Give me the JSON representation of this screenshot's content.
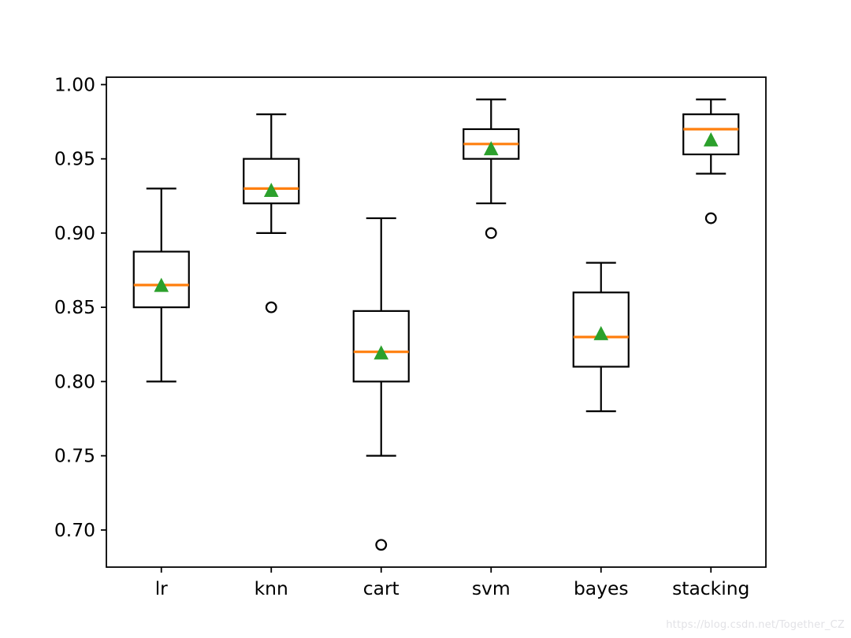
{
  "watermark": {
    "text": "https://blog.csdn.net/Together_CZ"
  },
  "chart_data": {
    "type": "box",
    "title": "",
    "xlabel": "",
    "ylabel": "",
    "categories": [
      "lr",
      "knn",
      "cart",
      "svm",
      "bayes",
      "stacking"
    ],
    "series": [
      {
        "name": "lr",
        "whisker_low": 0.8,
        "q1": 0.85,
        "median": 0.865,
        "q3": 0.8875,
        "whisker_high": 0.93,
        "mean": 0.865,
        "outliers": []
      },
      {
        "name": "knn",
        "whisker_low": 0.9,
        "q1": 0.92,
        "median": 0.93,
        "q3": 0.95,
        "whisker_high": 0.98,
        "mean": 0.929,
        "outliers": [
          0.85
        ]
      },
      {
        "name": "cart",
        "whisker_low": 0.75,
        "q1": 0.8,
        "median": 0.82,
        "q3": 0.8475,
        "whisker_high": 0.91,
        "mean": 0.8195,
        "outliers": [
          0.69
        ]
      },
      {
        "name": "svm",
        "whisker_low": 0.92,
        "q1": 0.95,
        "median": 0.96,
        "q3": 0.97,
        "whisker_high": 0.99,
        "mean": 0.957,
        "outliers": [
          0.9
        ]
      },
      {
        "name": "bayes",
        "whisker_low": 0.78,
        "q1": 0.81,
        "median": 0.83,
        "q3": 0.86,
        "whisker_high": 0.88,
        "mean": 0.8325,
        "outliers": []
      },
      {
        "name": "stacking",
        "whisker_low": 0.94,
        "q1": 0.953,
        "median": 0.97,
        "q3": 0.98,
        "whisker_high": 0.99,
        "mean": 0.963,
        "outliers": [
          0.91
        ]
      }
    ],
    "ylim": [
      0.675,
      1.005
    ],
    "yticks": [
      0.7,
      0.75,
      0.8,
      0.85,
      0.9,
      0.95,
      1.0
    ],
    "ytick_labels": [
      "0.70",
      "0.75",
      "0.80",
      "0.85",
      "0.90",
      "0.95",
      "1.00"
    ],
    "grid": false,
    "legend": null,
    "colors": {
      "box_line": "#000000",
      "median": "#ff7f0e",
      "mean_marker": "#2ca02c",
      "flier_edge": "#000000"
    }
  }
}
